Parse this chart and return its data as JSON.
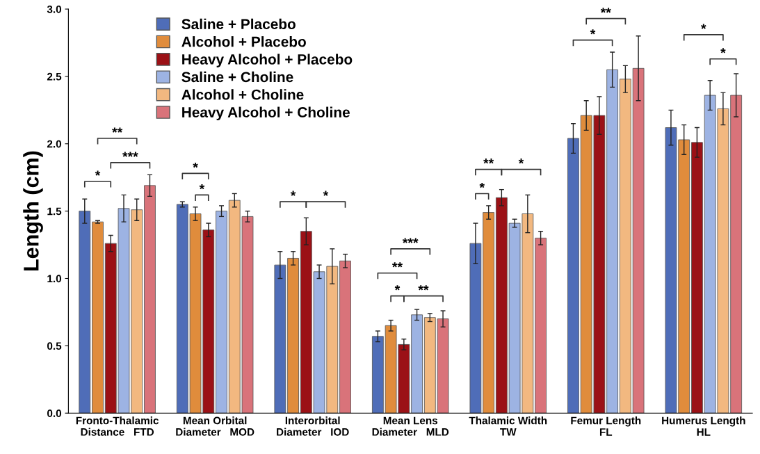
{
  "chart_data": {
    "type": "bar",
    "ylabel": "Length (cm)",
    "categories": [
      "Fronto-Thalamic\nDistance   FTD",
      "Mean Orbital\nDiameter   MOD",
      "Interorbital\nDiameter   IOD",
      "Mean Lens\nDiameter   MLD",
      "Thalamic Width\nTW",
      "Femur Length\nFL",
      "Humerus Length\nHL"
    ],
    "series": [
      {
        "name": "Saline + Placebo",
        "color": "#4f6db8",
        "values": [
          1.5,
          1.55,
          1.1,
          0.57,
          1.26,
          2.04,
          2.12
        ],
        "errors": [
          0.09,
          0.02,
          0.1,
          0.04,
          0.15,
          0.11,
          0.13
        ]
      },
      {
        "name": "Alcohol + Placebo",
        "color": "#e08c3c",
        "values": [
          1.42,
          1.48,
          1.15,
          0.65,
          1.49,
          2.21,
          2.03
        ],
        "errors": [
          0.01,
          0.05,
          0.05,
          0.04,
          0.05,
          0.11,
          0.11
        ]
      },
      {
        "name": "Heavy Alcohol + Placebo",
        "color": "#9b1116",
        "values": [
          1.26,
          1.36,
          1.35,
          0.51,
          1.6,
          2.21,
          2.01
        ],
        "errors": [
          0.06,
          0.05,
          0.1,
          0.04,
          0.06,
          0.14,
          0.11
        ]
      },
      {
        "name": "Saline + Choline",
        "color": "#9db3e3",
        "values": [
          1.52,
          1.5,
          1.05,
          0.73,
          1.41,
          2.55,
          2.36
        ],
        "errors": [
          0.1,
          0.04,
          0.05,
          0.04,
          0.03,
          0.13,
          0.11
        ]
      },
      {
        "name": "Alcohol + Choline",
        "color": "#f2b880",
        "values": [
          1.51,
          1.58,
          1.09,
          0.71,
          1.48,
          2.48,
          2.26
        ],
        "errors": [
          0.08,
          0.05,
          0.13,
          0.03,
          0.14,
          0.1,
          0.12
        ]
      },
      {
        "name": "Heavy Alcohol + Choline",
        "color": "#d9737a",
        "values": [
          1.69,
          1.46,
          1.13,
          0.7,
          1.3,
          2.56,
          2.36
        ],
        "errors": [
          0.08,
          0.04,
          0.05,
          0.06,
          0.05,
          0.24,
          0.16
        ]
      }
    ],
    "ylim": [
      0,
      3.0
    ],
    "yticks": [
      {
        "value": 0,
        "label": "0.0"
      },
      {
        "value": 0.5,
        "label": "0.5"
      },
      {
        "value": 1.0,
        "label": "1.0"
      },
      {
        "value": 1.5,
        "label": "1.5"
      },
      {
        "value": 2.0,
        "label": "2.0"
      },
      {
        "value": 2.5,
        "label": "2.5"
      },
      {
        "value": 3.0,
        "label": "3.0"
      }
    ],
    "grid": false,
    "legend": "top left",
    "annotations": [
      "**",
      "***",
      "*",
      "*",
      "*",
      "*",
      "*",
      "***",
      "**",
      "*",
      "**",
      "**",
      "*",
      "*",
      "**",
      "*",
      "*",
      "*"
    ]
  }
}
